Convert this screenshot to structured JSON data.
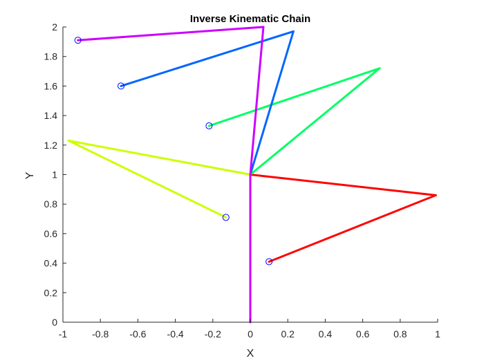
{
  "chart_data": {
    "type": "line",
    "title": "Inverse Kinematic Chain",
    "xlabel": "X",
    "ylabel": "Y",
    "xlim": [
      -1,
      1
    ],
    "ylim": [
      0,
      2
    ],
    "x_ticks": [
      "-1",
      "-0.8",
      "-0.6",
      "-0.4",
      "-0.2",
      "0",
      "0.2",
      "0.4",
      "0.6",
      "0.8",
      "1"
    ],
    "y_ticks": [
      "0",
      "0.2",
      "0.4",
      "0.6",
      "0.8",
      "1",
      "1.2",
      "1.4",
      "1.6",
      "1.8",
      "2"
    ],
    "grid": false,
    "series": [
      {
        "color": "#ff0000",
        "points": [
          [
            0,
            0
          ],
          [
            0,
            1
          ],
          [
            0.99,
            0.86
          ],
          [
            0.1,
            0.41
          ]
        ],
        "target": [
          0.1,
          0.41
        ]
      },
      {
        "color": "#ccff00",
        "points": [
          [
            0,
            0
          ],
          [
            0,
            1
          ],
          [
            -0.97,
            1.23
          ],
          [
            -0.13,
            0.71
          ]
        ],
        "target": [
          -0.13,
          0.71
        ]
      },
      {
        "color": "#00ff66",
        "points": [
          [
            0,
            0
          ],
          [
            0,
            1
          ],
          [
            0.69,
            1.72
          ],
          [
            -0.22,
            1.33
          ]
        ],
        "target": [
          -0.22,
          1.33
        ]
      },
      {
        "color": "#0066ff",
        "points": [
          [
            0,
            0
          ],
          [
            0,
            1
          ],
          [
            0.23,
            1.97
          ],
          [
            -0.69,
            1.6
          ]
        ],
        "target": [
          -0.69,
          1.6
        ]
      },
      {
        "color": "#cc00ff",
        "points": [
          [
            0,
            0
          ],
          [
            0,
            1
          ],
          [
            0.07,
            2.0
          ],
          [
            -0.92,
            1.91
          ]
        ],
        "target": [
          -0.92,
          1.91
        ]
      }
    ],
    "target_marker_color": "#0000ff"
  }
}
